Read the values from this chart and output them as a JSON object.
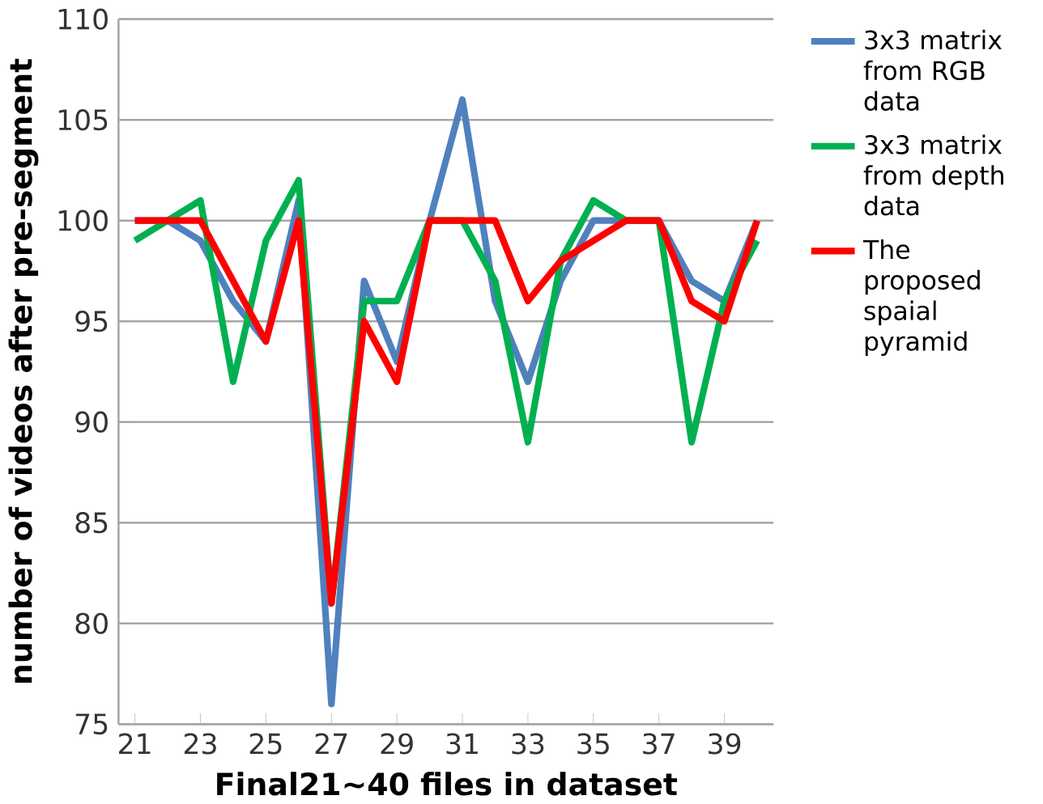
{
  "chart_data": {
    "type": "line",
    "xlabel": "Final21~40 files in dataset",
    "ylabel": "number of videos after pre-segment",
    "categories": [
      "21",
      null,
      "23",
      null,
      "25",
      null,
      "27",
      null,
      "29",
      null,
      "31",
      null,
      "33",
      null,
      "35",
      null,
      "37",
      null,
      "39",
      null
    ],
    "series": [
      {
        "name": "3x3 matrix from RGB data",
        "color": "#4f81bd",
        "values": [
          100,
          100,
          99,
          96,
          94,
          101,
          76,
          97,
          93,
          100,
          106,
          96,
          92,
          97,
          100,
          100,
          100,
          97,
          96,
          100
        ]
      },
      {
        "name": "3x3 matrix from depth data",
        "color": "#00b050",
        "values": [
          99,
          100,
          101,
          92,
          99,
          102,
          81,
          96,
          96,
          100,
          100,
          97,
          89,
          98,
          101,
          100,
          100,
          89,
          96,
          99
        ]
      },
      {
        "name": "The proposed spaial pyramid",
        "color": "#ff0000",
        "values": [
          100,
          100,
          100,
          97,
          94,
          100,
          81,
          95,
          92,
          100,
          100,
          100,
          96,
          98,
          99,
          100,
          100,
          96,
          95,
          100
        ]
      }
    ],
    "ylim": [
      75,
      110
    ],
    "yticks": [
      75,
      80,
      85,
      90,
      95,
      100,
      105,
      110
    ],
    "grid": "y",
    "legend": "right",
    "marker": "none",
    "line_style": "solid"
  }
}
